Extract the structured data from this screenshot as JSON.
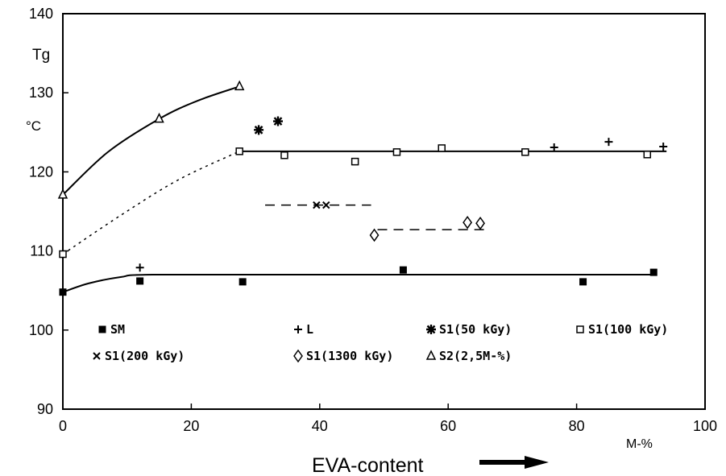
{
  "chart_data": {
    "type": "scatter",
    "ylabel": "Tg",
    "yunit": "°C",
    "xlabel": "EVA-content",
    "xunit": "M-%",
    "xlim": [
      0,
      100
    ],
    "ylim": [
      90,
      140
    ],
    "xticks": [
      "0",
      "20",
      "40",
      "60",
      "80",
      "100"
    ],
    "yticks": [
      "90",
      "100",
      "110",
      "120",
      "130",
      "140"
    ],
    "grid": false,
    "legend_position": "inside-lower",
    "series": [
      {
        "name": "SM",
        "marker": "filled-square",
        "points": [
          [
            0,
            104.8
          ],
          [
            12,
            106.2
          ],
          [
            28,
            106.1
          ],
          [
            53,
            107.6
          ],
          [
            81,
            106.1
          ],
          [
            92,
            107.3
          ]
        ]
      },
      {
        "name": "L",
        "marker": "plus",
        "points": [
          [
            12,
            107.9
          ],
          [
            76.5,
            123.1
          ],
          [
            85,
            123.8
          ],
          [
            93.5,
            123.2
          ]
        ]
      },
      {
        "name": "S1(50 kGy)",
        "marker": "asterisk",
        "points": [
          [
            30.5,
            125.3
          ],
          [
            33.5,
            126.4
          ]
        ]
      },
      {
        "name": "S1(100 kGy)",
        "marker": "open-square",
        "points": [
          [
            0,
            109.6
          ],
          [
            27.5,
            122.6
          ],
          [
            34.5,
            122.1
          ],
          [
            45.5,
            121.3
          ],
          [
            52,
            122.5
          ],
          [
            59,
            123
          ],
          [
            72,
            122.5
          ],
          [
            91,
            122.2
          ]
        ]
      },
      {
        "name": "S1(200 kGy)",
        "marker": "x",
        "points": [
          [
            39.5,
            115.8
          ],
          [
            41,
            115.8
          ]
        ]
      },
      {
        "name": "S1(1300 kGy)",
        "marker": "open-diamond",
        "points": [
          [
            48.5,
            112
          ],
          [
            63,
            113.6
          ],
          [
            65,
            113.5
          ]
        ]
      },
      {
        "name": "S2(2,5M-%)",
        "marker": "open-triangle",
        "points": [
          [
            0,
            117.1
          ],
          [
            15,
            126.7
          ],
          [
            27.5,
            130.8
          ]
        ]
      }
    ],
    "fit_curves": [
      {
        "style": "solid",
        "points": [
          [
            0,
            117.1
          ],
          [
            7,
            122.5
          ],
          [
            15,
            126.7
          ],
          [
            21,
            129
          ],
          [
            27.5,
            130.8
          ]
        ]
      },
      {
        "style": "dotted",
        "points": [
          [
            0,
            109.6
          ],
          [
            9,
            114.5
          ],
          [
            18,
            119
          ],
          [
            27.5,
            122.6
          ]
        ]
      },
      {
        "style": "solid",
        "points": [
          [
            27.5,
            122.6
          ],
          [
            94,
            122.6
          ]
        ]
      },
      {
        "style": "solid",
        "points": [
          [
            0,
            104.8
          ],
          [
            4,
            105.9
          ],
          [
            9,
            106.7
          ],
          [
            14,
            107
          ],
          [
            40,
            107
          ],
          [
            70,
            107
          ],
          [
            92,
            107
          ]
        ]
      },
      {
        "style": "dashed",
        "points": [
          [
            31.5,
            115.8
          ],
          [
            48,
            115.8
          ]
        ]
      },
      {
        "style": "dashed",
        "points": [
          [
            49,
            112.7
          ],
          [
            66,
            112.7
          ]
        ]
      }
    ]
  }
}
